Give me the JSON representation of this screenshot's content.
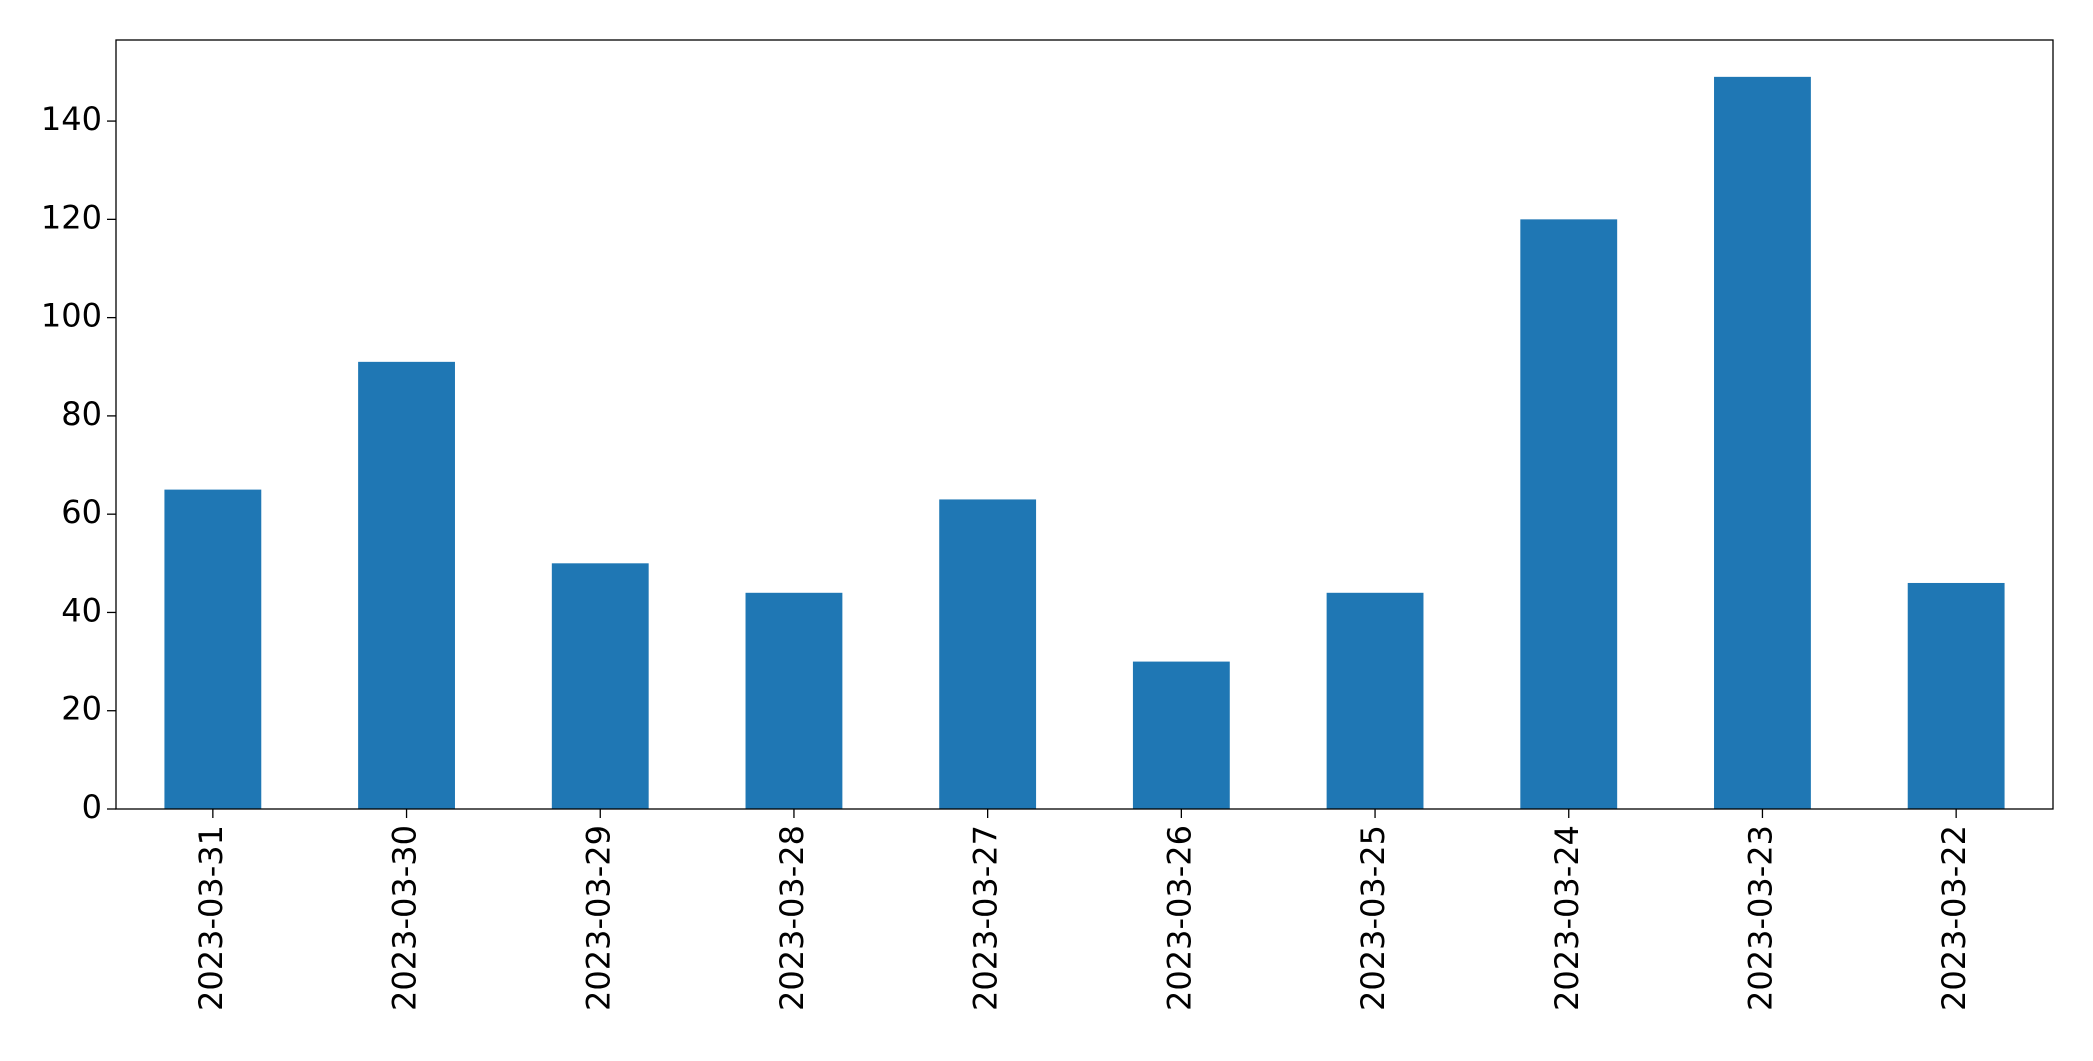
{
  "chart_data": {
    "type": "bar",
    "categories": [
      "2023-03-31",
      "2023-03-30",
      "2023-03-29",
      "2023-03-28",
      "2023-03-27",
      "2023-03-26",
      "2023-03-25",
      "2023-03-24",
      "2023-03-23",
      "2023-03-22"
    ],
    "values": [
      65,
      91,
      50,
      44,
      63,
      30,
      44,
      120,
      149,
      46
    ],
    "color": "#1f77b4",
    "ylim": [
      0,
      156.5
    ],
    "yticks": [
      0,
      20,
      40,
      60,
      80,
      100,
      120,
      140
    ],
    "grid": false
  }
}
